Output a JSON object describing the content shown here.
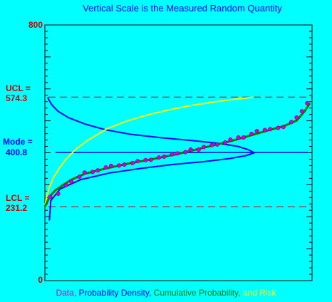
{
  "chart_data": {
    "type": "scatter",
    "title": "Vertical Scale is the Measured Random Quantity",
    "ylim": [
      0,
      800
    ],
    "y_axis_labels": {
      "max": "800",
      "min": "0"
    },
    "reference_lines": {
      "ucl": {
        "label": "UCL =",
        "value_text": "574.3",
        "value": 574.3,
        "color": "#cc0000",
        "style": "dashed"
      },
      "mode": {
        "label": "Mode =",
        "value_text": "400.8",
        "value": 400.8,
        "color": "#0000ff",
        "style": "solid"
      },
      "lcl": {
        "label": "LCL =",
        "value_text": "231.2",
        "value": 231.2,
        "color": "#cc0000",
        "style": "dashed"
      }
    },
    "legend": [
      {
        "text": "Data,",
        "color": "#cc00cc"
      },
      {
        "text": "Probability Density,",
        "color": "#0000ff"
      },
      {
        "text": "Cumulative Probability,",
        "color": "#008000"
      },
      {
        "text": "and Risk",
        "color": "#ffff00"
      }
    ],
    "series": [
      {
        "kind": "data",
        "color": "#cc00cc",
        "x_fraction": [
          0.02,
          0.05,
          0.08,
          0.1,
          0.13,
          0.15,
          0.18,
          0.2,
          0.23,
          0.25,
          0.28,
          0.3,
          0.33,
          0.35,
          0.38,
          0.4,
          0.43,
          0.45,
          0.48,
          0.5,
          0.53,
          0.55,
          0.58,
          0.6,
          0.63,
          0.65,
          0.68,
          0.7,
          0.73,
          0.75,
          0.78,
          0.8,
          0.83,
          0.85,
          0.88,
          0.9,
          0.93,
          0.95,
          0.97,
          0.99
        ],
        "values": [
          262,
          272,
          299,
          310,
          325,
          338,
          340,
          345,
          354,
          359,
          360,
          363,
          368,
          374,
          377,
          378,
          385,
          388,
          395,
          398,
          402,
          410,
          410,
          418,
          424,
          426,
          432,
          441,
          448,
          448,
          459,
          468,
          471,
          474,
          478,
          481,
          496,
          510,
          530,
          555
        ]
      },
      {
        "kind": "cumulative_probability",
        "color": "#008000",
        "x_fraction": [
          0.0,
          0.01,
          0.02,
          0.04,
          0.07,
          0.1,
          0.15,
          0.2,
          0.3,
          0.4,
          0.5,
          0.6,
          0.7,
          0.8,
          0.85,
          0.9,
          0.95,
          0.98,
          1.0
        ],
        "values": [
          231,
          248,
          265,
          283,
          300,
          316,
          334,
          345,
          364,
          379,
          396,
          416,
          436,
          460,
          472,
          483,
          501,
          530,
          555
        ]
      },
      {
        "kind": "risk",
        "color": "#ffff00",
        "x_fraction": [
          0.0,
          0.005,
          0.01,
          0.02,
          0.04,
          0.07,
          0.1,
          0.15,
          0.2,
          0.3,
          0.4,
          0.5,
          0.6,
          0.7,
          0.8,
          0.9,
          1.0
        ],
        "values": [
          231,
          253,
          268,
          290,
          321,
          353,
          379,
          412,
          437,
          476,
          501,
          520,
          535,
          548,
          558,
          567,
          574
        ]
      },
      {
        "kind": "probability_density",
        "color": "#0000ff",
        "density_fraction": [
          0.0,
          0.006,
          0.02,
          0.05,
          0.1,
          0.18,
          0.28,
          0.4,
          0.55,
          0.7,
          0.82,
          0.92,
          0.97,
          1.0,
          0.96,
          0.88,
          0.75,
          0.6,
          0.45,
          0.3,
          0.16,
          0.06,
          0.015,
          0.008
        ],
        "values": [
          574,
          565,
          550,
          530,
          510,
          490,
          472,
          458,
          447,
          438,
          430,
          420,
          410,
          400,
          391,
          382,
          372,
          363,
          351,
          337,
          316,
          287,
          250,
          188
        ]
      }
    ]
  }
}
